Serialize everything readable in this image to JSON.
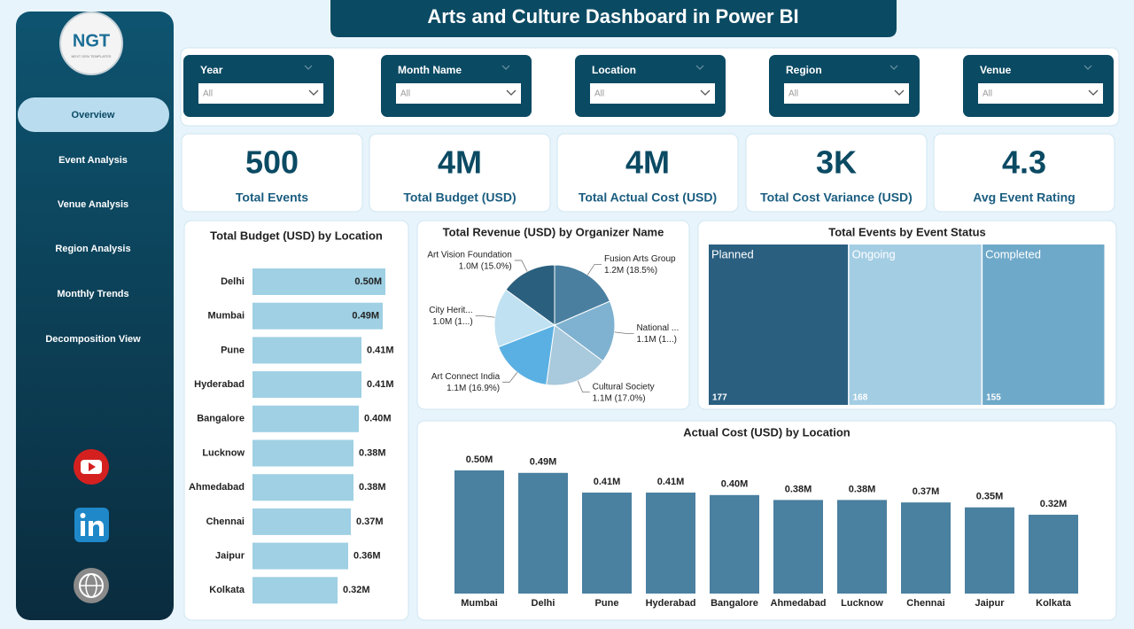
{
  "title": "Arts and Culture Dashboard in Power BI",
  "logo": {
    "text": "NGT",
    "tagline": "NEXT GEN TEMPLATES"
  },
  "nav": [
    "Overview",
    "Event Analysis",
    "Venue Analysis",
    "Region Analysis",
    "Monthly Trends",
    "Decomposition View"
  ],
  "filters": [
    {
      "label": "Year",
      "value": "All"
    },
    {
      "label": "Month Name",
      "value": "All"
    },
    {
      "label": "Location",
      "value": "All"
    },
    {
      "label": "Region",
      "value": "All"
    },
    {
      "label": "Venue",
      "value": "All"
    }
  ],
  "kpis": [
    {
      "value": "500",
      "label": "Total Events"
    },
    {
      "value": "4M",
      "label": "Total Budget (USD)"
    },
    {
      "value": "4M",
      "label": "Total Actual Cost (USD)"
    },
    {
      "value": "3K",
      "label": "Total Cost Variance (USD)"
    },
    {
      "value": "4.3",
      "label": "Avg Event Rating"
    }
  ],
  "chart_data": [
    {
      "type": "bar",
      "orientation": "horizontal",
      "title": "Total Budget (USD) by Location",
      "categories": [
        "Delhi",
        "Mumbai",
        "Pune",
        "Hyderabad",
        "Bangalore",
        "Lucknow",
        "Ahmedabad",
        "Chennai",
        "Jaipur",
        "Kolkata"
      ],
      "values": [
        0.5,
        0.49,
        0.41,
        0.41,
        0.4,
        0.38,
        0.38,
        0.37,
        0.36,
        0.32
      ],
      "value_labels": [
        "0.50M",
        "0.49M",
        "0.41M",
        "0.41M",
        "0.40M",
        "0.38M",
        "0.38M",
        "0.37M",
        "0.36M",
        "0.32M"
      ],
      "color": "#9fd0e4"
    },
    {
      "type": "pie",
      "title": "Total Revenue (USD) by Organizer Name",
      "categories": [
        "Fusion Arts Group",
        "National ...",
        "Cultural Society",
        "Art Connect India",
        "City Herit...",
        "Art Vision Foundation"
      ],
      "values": [
        18.5,
        16.7,
        17.0,
        16.9,
        15.9,
        15.0
      ],
      "value_labels": [
        "1.2M (18.5%)",
        "1.1M (1...)",
        "1.1M (17.0%)",
        "1.1M (16.9%)",
        "1.0M (1...)",
        "1.0M (15.0%)"
      ],
      "colors": [
        "#4a7fa0",
        "#7fb2d0",
        "#a9c9dc",
        "#5ab0e2",
        "#bfe1f2",
        "#2b5f7e"
      ]
    },
    {
      "type": "treemap",
      "title": "Total Events by Event Status",
      "categories": [
        "Planned",
        "Ongoing",
        "Completed"
      ],
      "values": [
        177,
        168,
        155
      ],
      "colors": [
        "#2a5f80",
        "#a3cde3",
        "#6fa9c9"
      ]
    },
    {
      "type": "bar",
      "orientation": "vertical",
      "title": "Actual Cost (USD) by Location",
      "categories": [
        "Mumbai",
        "Delhi",
        "Pune",
        "Hyderabad",
        "Bangalore",
        "Ahmedabad",
        "Lucknow",
        "Chennai",
        "Jaipur",
        "Kolkata"
      ],
      "values": [
        0.5,
        0.49,
        0.41,
        0.41,
        0.4,
        0.38,
        0.38,
        0.37,
        0.35,
        0.32
      ],
      "value_labels": [
        "0.50M",
        "0.49M",
        "0.41M",
        "0.41M",
        "0.40M",
        "0.38M",
        "0.38M",
        "0.37M",
        "0.35M",
        "0.32M"
      ],
      "color": "#4a80a0"
    }
  ]
}
